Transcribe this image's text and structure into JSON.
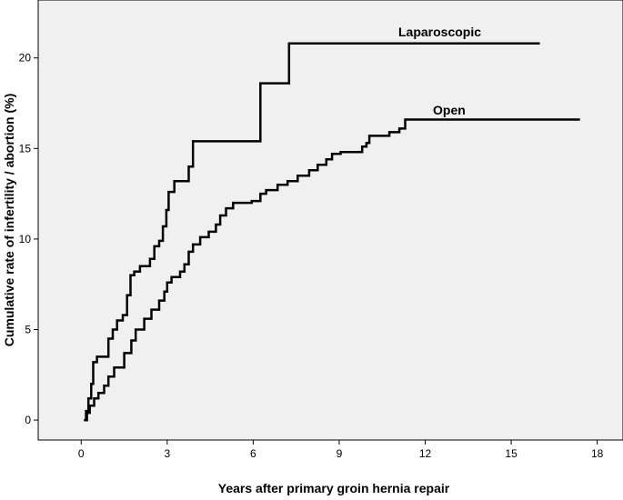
{
  "chart_data": {
    "type": "line",
    "step": true,
    "xlabel": "Years after primary groin hernia repair",
    "ylabel": "Cumulative rate of infertility / abortion (%)",
    "xlim": [
      -1.5,
      18.9
    ],
    "ylim": [
      -1.1,
      23.2
    ],
    "xticks": [
      0,
      3,
      6,
      9,
      12,
      15,
      18
    ],
    "yticks": [
      0,
      5,
      10,
      15,
      20
    ],
    "plot_background": "#f0f0f0",
    "line_color": "#000000",
    "grid": false,
    "legend": "none",
    "series": [
      {
        "name": "Laparoscopic",
        "points": [
          [
            0.1,
            0.0
          ],
          [
            0.17,
            0.5
          ],
          [
            0.25,
            1.2
          ],
          [
            0.35,
            2.0
          ],
          [
            0.42,
            3.2
          ],
          [
            0.55,
            3.5
          ],
          [
            0.85,
            3.5
          ],
          [
            0.95,
            4.5
          ],
          [
            1.1,
            5.0
          ],
          [
            1.25,
            5.5
          ],
          [
            1.45,
            5.8
          ],
          [
            1.6,
            6.9
          ],
          [
            1.72,
            8.0
          ],
          [
            1.85,
            8.2
          ],
          [
            2.05,
            8.5
          ],
          [
            2.4,
            8.9
          ],
          [
            2.55,
            9.6
          ],
          [
            2.72,
            9.9
          ],
          [
            2.85,
            10.7
          ],
          [
            2.97,
            11.6
          ],
          [
            3.05,
            12.6
          ],
          [
            3.25,
            13.2
          ],
          [
            3.75,
            14.0
          ],
          [
            3.9,
            15.4
          ],
          [
            6.25,
            18.6
          ],
          [
            7.25,
            20.8
          ],
          [
            16.0,
            20.8
          ]
        ]
      },
      {
        "name": "Open",
        "points": [
          [
            0.1,
            0.0
          ],
          [
            0.2,
            0.4
          ],
          [
            0.3,
            0.8
          ],
          [
            0.45,
            1.2
          ],
          [
            0.6,
            1.5
          ],
          [
            0.8,
            1.9
          ],
          [
            0.95,
            2.4
          ],
          [
            1.15,
            2.9
          ],
          [
            1.5,
            3.7
          ],
          [
            1.75,
            4.4
          ],
          [
            1.9,
            5.0
          ],
          [
            2.2,
            5.6
          ],
          [
            2.45,
            6.1
          ],
          [
            2.72,
            6.6
          ],
          [
            2.9,
            7.1
          ],
          [
            3.0,
            7.6
          ],
          [
            3.15,
            7.9
          ],
          [
            3.45,
            8.2
          ],
          [
            3.6,
            8.6
          ],
          [
            3.75,
            9.3
          ],
          [
            3.9,
            9.7
          ],
          [
            4.15,
            10.1
          ],
          [
            4.45,
            10.4
          ],
          [
            4.7,
            10.8
          ],
          [
            4.85,
            11.3
          ],
          [
            5.05,
            11.7
          ],
          [
            5.3,
            12.0
          ],
          [
            5.95,
            12.1
          ],
          [
            6.25,
            12.5
          ],
          [
            6.45,
            12.7
          ],
          [
            6.85,
            13.0
          ],
          [
            7.2,
            13.2
          ],
          [
            7.55,
            13.5
          ],
          [
            7.95,
            13.8
          ],
          [
            8.25,
            14.1
          ],
          [
            8.55,
            14.4
          ],
          [
            8.75,
            14.7
          ],
          [
            9.05,
            14.8
          ],
          [
            9.8,
            15.1
          ],
          [
            9.95,
            15.3
          ],
          [
            10.05,
            15.7
          ],
          [
            10.75,
            15.9
          ],
          [
            11.1,
            16.1
          ],
          [
            11.3,
            16.6
          ],
          [
            17.4,
            16.6
          ]
        ]
      }
    ]
  }
}
